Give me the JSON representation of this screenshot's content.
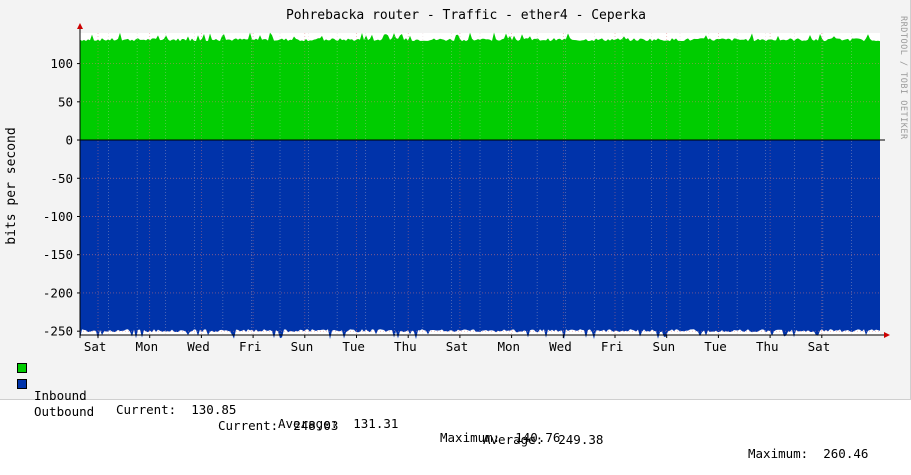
{
  "chart_data": {
    "type": "area",
    "title": "Pohrebacka router - Traffic - ether4 - Ceperka",
    "ylabel": "bits per second",
    "xlabel": "",
    "watermark": "RRDTOOL / TOBI OETIKER",
    "ylim": [
      -255,
      140
    ],
    "yticks": [
      -250,
      -200,
      -150,
      -100,
      -50,
      0,
      50,
      100
    ],
    "ytick_labels": [
      "-250",
      "-200",
      "-150",
      "-100",
      "-50",
      "0",
      "50",
      "100"
    ],
    "x_days": [
      "Sat",
      "Mon",
      "Wed",
      "Fri",
      "Sun",
      "Tue",
      "Thu",
      "Sat",
      "Mon",
      "Wed",
      "Fri",
      "Sun",
      "Tue",
      "Thu",
      "Sat"
    ],
    "grid": true,
    "series": [
      {
        "name": "Inbound",
        "color": "#00cc00",
        "sign": 1,
        "current": "130.85",
        "average": "131.31",
        "maximum": "140.76",
        "typical": 131.3,
        "spike_max": 140.76
      },
      {
        "name": "Outbound",
        "color": "#0033aa",
        "sign": -1,
        "current": "248.03",
        "average": "249.38",
        "maximum": "260.46",
        "typical": 249.4,
        "spike_max": 260.46
      }
    ]
  },
  "legend": {
    "inbound_label": "Inbound",
    "inbound_current": "Current:  130.85",
    "inbound_average": "Average:  131.31",
    "inbound_maximum": "Maximum:  140.76",
    "outbound_label": "Outbound",
    "outbound_current": "Current:  248.03",
    "outbound_average": "Average:  249.38",
    "outbound_maximum": "Maximum:  260.46"
  }
}
